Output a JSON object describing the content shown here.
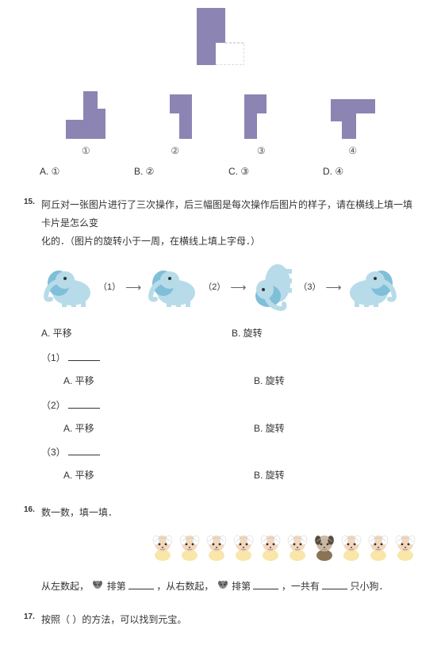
{
  "colors": {
    "shape_fill": "#8c84b3",
    "shape_stroke": "#8c84b3",
    "dashed_stroke": "#b9b3d6",
    "elephant_body": "#b7dbe8",
    "elephant_ear": "#7fbfd8",
    "elephant_eye": "#333333",
    "child_head": "#f3d8bc",
    "child_hair": "#ffffff",
    "child_body": "#f9e6a8",
    "child_dark_hair": "#5a4a3a",
    "child_dark_body": "#8b7355",
    "dog_gray": "#888888"
  },
  "top_shape": {
    "width": 60,
    "height": 72
  },
  "shapes": {
    "labels": [
      "①",
      "②",
      "③",
      "④"
    ]
  },
  "answers14": {
    "a": "A. ①",
    "b": "B. ②",
    "c": "C. ③",
    "d": "D. ④"
  },
  "q15": {
    "num": "15.",
    "text_line1": "阿丘对一张图片进行了三次操作，后三幅图是每次操作后图片的样子，请在横线上填一填卡片是怎么变",
    "text_line2": "化的．（图片的旋转小于一周，在横线上填上字母．）",
    "steps": [
      "（1）",
      "（2）",
      "（3）"
    ],
    "opt_a": "A. 平移",
    "opt_b": "B. 旋转",
    "sub1": "（1）",
    "sub2": "（2）",
    "sub3": "（3）",
    "sub_a": "A. 平移",
    "sub_b": "B. 旋转"
  },
  "q16": {
    "num": "16.",
    "title": "数一数，填一填．",
    "children_count": 10,
    "dark_index": 6,
    "line_1a": "从左数起，",
    "line_1b": "排第",
    "line_1c": "，从右数起，",
    "line_1d": "排第",
    "line_1e": "，一共有",
    "line_1f": "只小狗．"
  },
  "q17": {
    "num": "17.",
    "text": "按照（  ）的方法，可以找到元宝。"
  }
}
